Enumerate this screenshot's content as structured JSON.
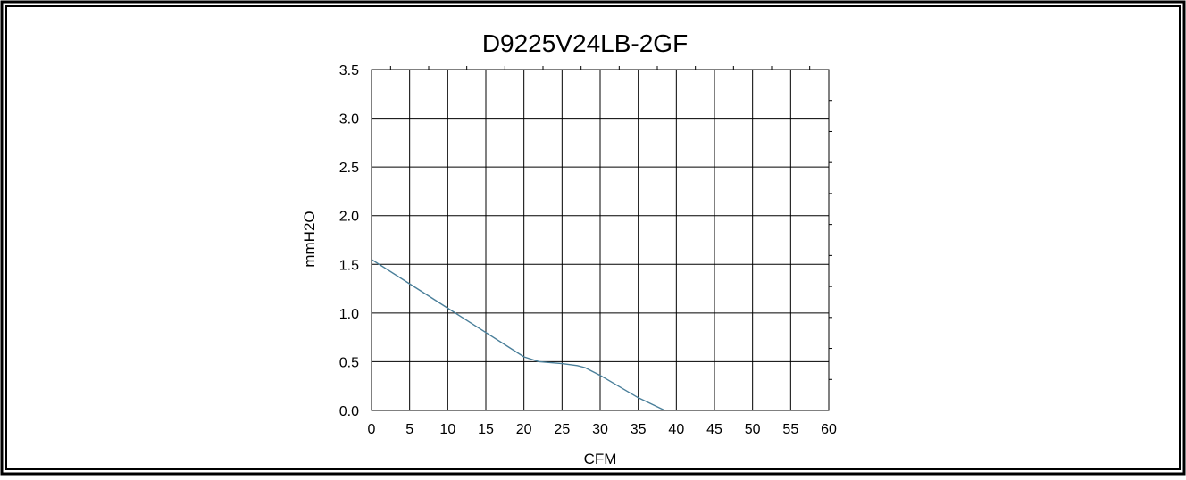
{
  "chart_data": {
    "type": "line",
    "title": "D9225V24LB-2GF",
    "xlabel": "CFM",
    "ylabel": "mmH2O",
    "xlim": [
      0,
      60
    ],
    "ylim": [
      0,
      3.5
    ],
    "x_ticks": [
      "0",
      "5",
      "10",
      "15",
      "20",
      "25",
      "30",
      "35",
      "40",
      "45",
      "50",
      "55",
      "60"
    ],
    "y_ticks": [
      "0.0",
      "0.5",
      "1.0",
      "1.5",
      "2.0",
      "2.5",
      "3.0",
      "3.5"
    ],
    "grid": true,
    "series": [
      {
        "x": [
          0,
          5,
          10,
          15,
          20,
          22,
          25,
          27,
          28,
          30,
          35,
          38.5
        ],
        "y": [
          1.55,
          1.3,
          1.05,
          0.8,
          0.55,
          0.5,
          0.48,
          0.46,
          0.44,
          0.36,
          0.13,
          0.0
        ],
        "color": "#4a7f9a"
      }
    ]
  }
}
